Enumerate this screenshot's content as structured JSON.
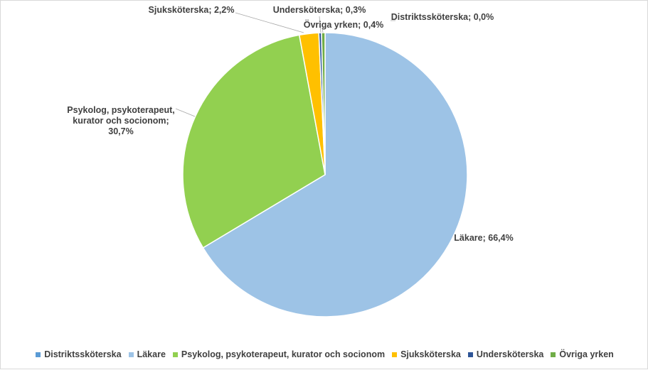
{
  "chart_data": {
    "type": "pie",
    "categories": [
      "Distriktssköterska",
      "Läkare",
      "Psykolog, psykoterapeut, kurator och socionom",
      "Sjuksköterska",
      "Undersköterska",
      "Övriga yrken"
    ],
    "values": [
      0.0,
      66.4,
      30.7,
      2.2,
      0.3,
      0.4
    ],
    "colors": [
      "#5b9bd5",
      "#9dc3e6",
      "#92d050",
      "#ffc000",
      "#2e5597",
      "#70ad47"
    ],
    "data_labels": [
      [
        "Distriktssköterska; 0,0%"
      ],
      [
        "Läkare; 66,4%"
      ],
      [
        "Psykolog, psykoterapeut,",
        "kurator och socionom;",
        "30,7%"
      ],
      [
        "Sjuksköterska; 2,2%"
      ],
      [
        "Undersköterska; 0,3%"
      ],
      [
        "Övriga yrken; 0,4%"
      ]
    ],
    "legend_position": "bottom",
    "start_angle": "12 o'clock, clockwise"
  }
}
